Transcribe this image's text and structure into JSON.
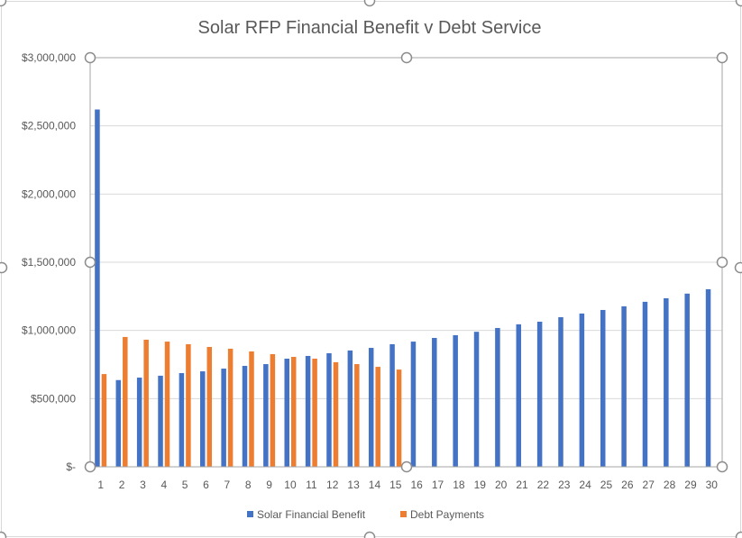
{
  "chart_data": {
    "type": "bar",
    "title": "Solar RFP Financial Benefit v Debt Service",
    "xlabel": "",
    "ylabel": "",
    "ylim": [
      0,
      3000000
    ],
    "yticks": [
      0,
      500000,
      1000000,
      1500000,
      2000000,
      2500000,
      3000000
    ],
    "ytick_labels": [
      "$-",
      "$500,000",
      "$1,000,000",
      "$1,500,000",
      "$2,000,000",
      "$2,500,000",
      "$3,000,000"
    ],
    "grid": true,
    "legend_position": "bottom",
    "categories": [
      "1",
      "2",
      "3",
      "4",
      "5",
      "6",
      "7",
      "8",
      "9",
      "10",
      "11",
      "12",
      "13",
      "14",
      "15",
      "16",
      "17",
      "18",
      "19",
      "20",
      "21",
      "22",
      "23",
      "24",
      "25",
      "26",
      "27",
      "28",
      "29",
      "30"
    ],
    "series": [
      {
        "name": "Solar Financial Benefit",
        "color": "#4472C4",
        "values": [
          2620000,
          636000,
          654000,
          668000,
          687000,
          700000,
          720000,
          740000,
          753000,
          793000,
          813000,
          833000,
          853000,
          872000,
          899000,
          918000,
          945000,
          965000,
          990000,
          1018000,
          1045000,
          1064000,
          1097000,
          1124000,
          1150000,
          1177000,
          1210000,
          1236000,
          1270000,
          1302000
        ]
      },
      {
        "name": "Debt Payments",
        "color": "#ED7D31",
        "values": [
          680000,
          952000,
          932000,
          918000,
          899000,
          879000,
          866000,
          846000,
          826000,
          806000,
          793000,
          767000,
          753000,
          733000,
          713000,
          null,
          null,
          null,
          null,
          null,
          null,
          null,
          null,
          null,
          null,
          null,
          null,
          null,
          null,
          null
        ]
      }
    ]
  }
}
